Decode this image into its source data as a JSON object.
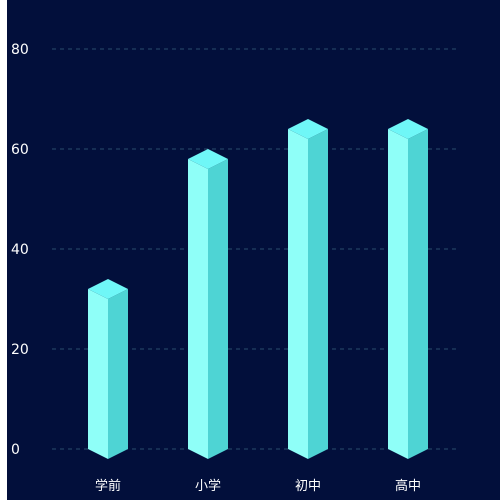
{
  "chart_data": {
    "type": "bar",
    "categories": [
      "学前",
      "小学",
      "初中",
      "高中"
    ],
    "values": [
      32,
      58,
      64,
      64
    ],
    "ylim": [
      0,
      80
    ],
    "yticks": [
      "0",
      "20",
      "40",
      "60",
      "80"
    ],
    "grid": true,
    "title": "",
    "xlabel": "",
    "ylabel": ""
  },
  "colors": {
    "background": "#020f3b",
    "bar_front_left": "#8ffff8",
    "bar_front_right": "#4ed4d4",
    "bar_top": "#6ff7f7",
    "grid": "#2a4d6e",
    "text": "#ffffff"
  }
}
